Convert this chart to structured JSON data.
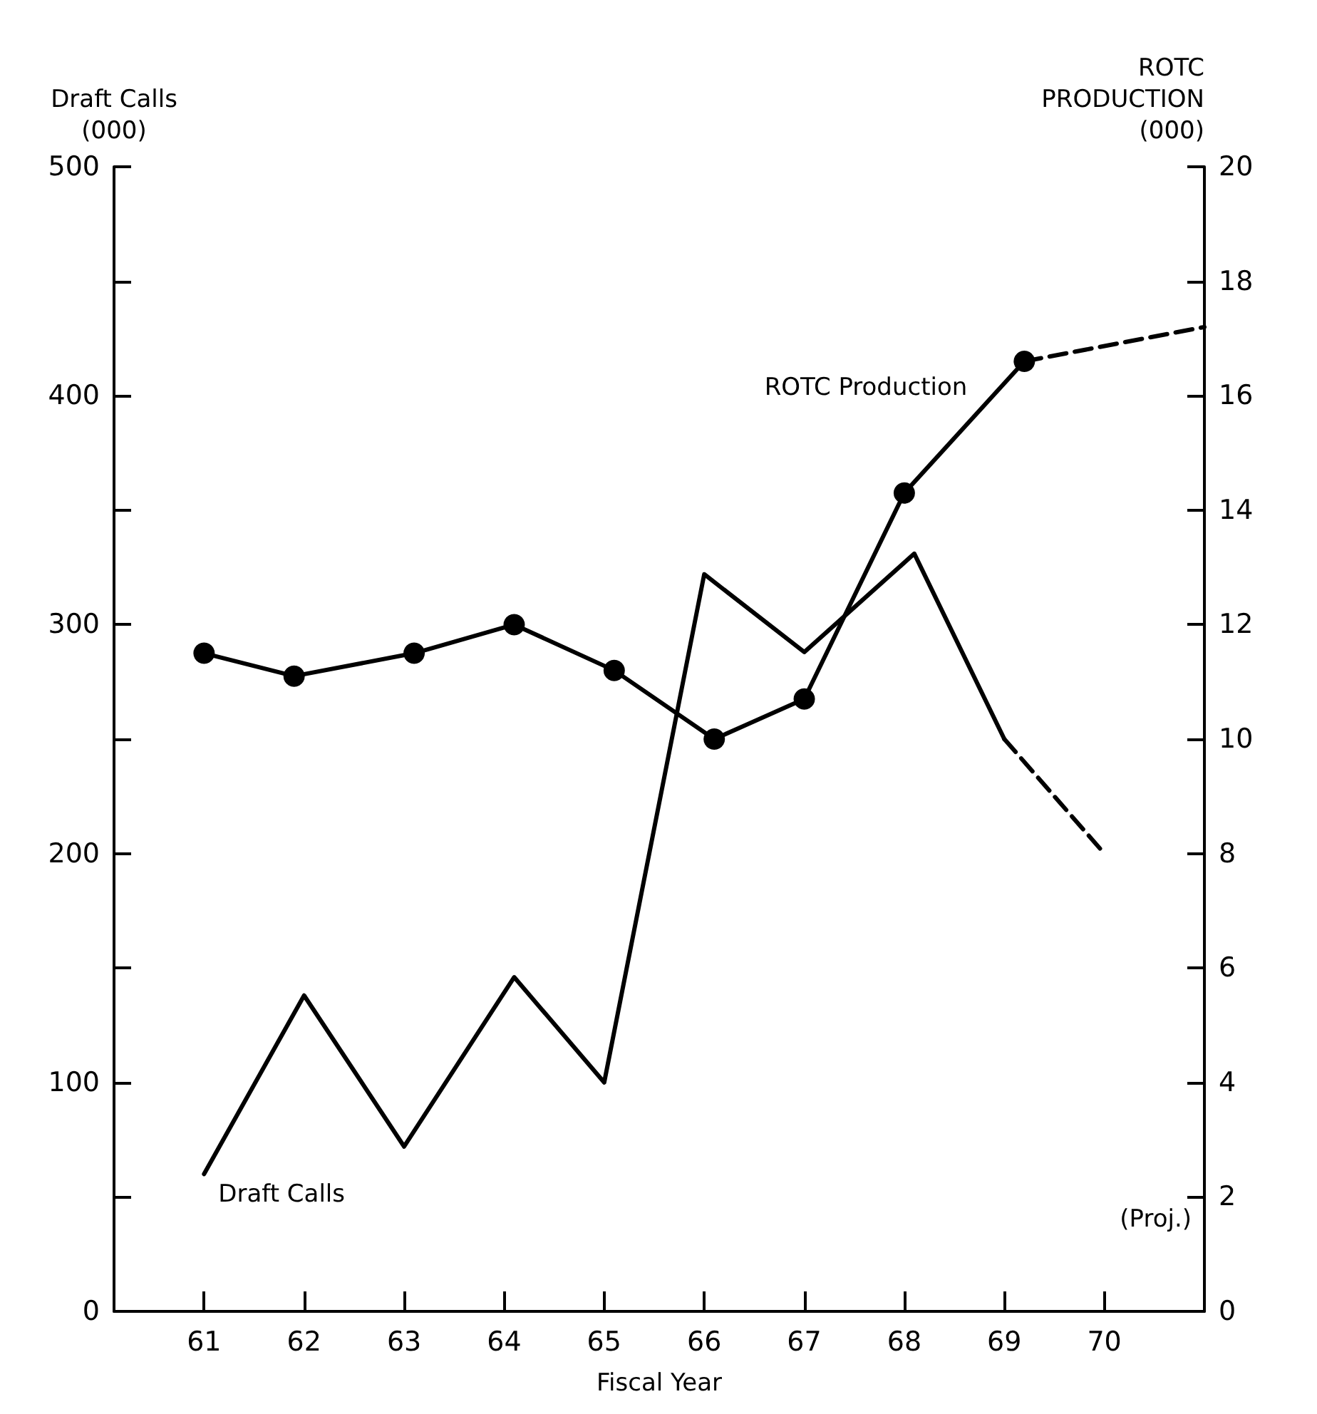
{
  "chart_data": {
    "type": "line",
    "xlabel": "Fiscal Year",
    "ylabel": "Draft Calls\n(000)",
    "y2label": "ROTC\nPRODUCTION\n(000)",
    "series": [
      {
        "name": "Draft Calls",
        "color": "#000000",
        "x": [
          61,
          62,
          63,
          64.1,
          65,
          66,
          67,
          68.1,
          69
        ],
        "values": [
          60,
          138,
          72,
          146,
          100,
          322,
          288,
          331,
          250
        ],
        "marker": "none",
        "line_style": "solid"
      },
      {
        "color": "#000000",
        "x": [
          69,
          70
        ],
        "values": [
          250,
          200
        ],
        "marker": "none",
        "line_style": "dashed"
      },
      {
        "name": "ROTC Production",
        "color": "#000000",
        "x": [
          61,
          61.9,
          63.1,
          64.1,
          65.1,
          66.1,
          67,
          68,
          69.2
        ],
        "values": [
          11.5,
          11.1,
          11.5,
          12,
          11.2,
          10,
          10.7,
          14.3,
          16.6
        ],
        "marker": "circle",
        "line_style": "solid",
        "axis": "y2"
      },
      {
        "color": "#000000",
        "x": [
          69.2,
          71
        ],
        "values": [
          16.6,
          17.2
        ],
        "marker": "none",
        "line_style": "dashed",
        "axis": "y2"
      }
    ],
    "xlim": [
      60.1,
      71
    ],
    "xticks": [
      61,
      62,
      63,
      64,
      65,
      66,
      67,
      68,
      69,
      70
    ],
    "ylim": [
      0,
      500
    ],
    "yticks": [
      0,
      {
        "value": 50,
        "label": null
      },
      100,
      {
        "value": 150,
        "label": null
      },
      200,
      {
        "value": 250,
        "label": null
      },
      300,
      {
        "value": 350,
        "label": null
      },
      400,
      {
        "value": 450,
        "label": null
      },
      500
    ],
    "y2lim": [
      0,
      20
    ],
    "y2ticks": [
      0,
      2,
      4,
      6,
      8,
      10,
      12,
      14,
      16,
      18,
      20
    ],
    "annotations": [
      "(Proj.)"
    ],
    "grid": false,
    "legend": false
  }
}
